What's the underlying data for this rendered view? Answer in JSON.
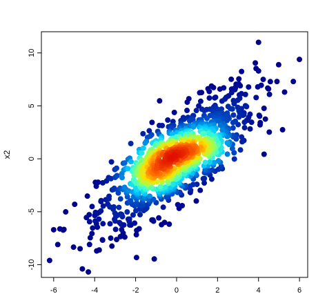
{
  "chart_data": {
    "type": "scatter",
    "title": "",
    "xlabel": "",
    "ylabel": "x2",
    "xlim": [
      -6.6,
      6.4
    ],
    "ylim": [
      -11.2,
      12.0
    ],
    "xticks": [
      -6,
      -4,
      -2,
      0,
      2,
      4,
      6
    ],
    "yticks": [
      -10,
      -5,
      0,
      5,
      10
    ],
    "grid": false,
    "legend": "none",
    "color_encoding": "point density (blue = low, red = high)",
    "colors": [
      "#00008b",
      "#0050c8",
      "#00c8ff",
      "#40ffd0",
      "#a0ff50",
      "#ffe000",
      "#ff7000",
      "#e01000"
    ],
    "highlighted_points": [
      {
        "x": 4.0,
        "y": 11.0
      },
      {
        "x": -4.6,
        "y": -10.4
      },
      {
        "x": -6.2,
        "y": -9.6
      },
      {
        "x": 4.9,
        "y": 7.3
      },
      {
        "x": 5.7,
        "y": 7.3
      },
      {
        "x": 2.3,
        "y": 6.7
      },
      {
        "x": -5.8,
        "y": -8.1
      },
      {
        "x": -3.9,
        "y": -8.7
      },
      {
        "x": -6.0,
        "y": -6.7
      },
      {
        "x": 4.0,
        "y": 8.3
      }
    ],
    "density_centers": [
      {
        "x": -0.5,
        "y": 0.4,
        "level": 1.0
      },
      {
        "x": 1.2,
        "y": 1.0,
        "level": 0.85
      },
      {
        "x": -1.2,
        "y": -1.5,
        "level": 0.9
      }
    ]
  }
}
